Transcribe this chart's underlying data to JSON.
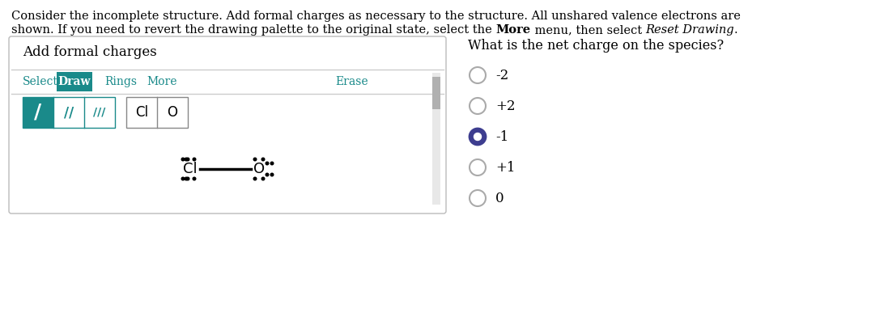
{
  "title_line1": "Consider the incomplete structure. Add formal charges as necessary to the structure. All unshared valence electrons are",
  "title_line2_plain": "shown. If you need to revert the drawing palette to the original state, select the ",
  "title_line2_bold": "More",
  "title_line2_mid": " menu, then select ",
  "title_line2_italic": "Reset Drawing",
  "title_line2_end": ".",
  "panel_left_title": "Add formal charges",
  "teal_color": "#1a8a8a",
  "toolbar_items": [
    "Select",
    "Draw",
    "Rings",
    "More",
    "Erase"
  ],
  "toolbar_active": "Draw",
  "panel_right_title": "What is the net charge on the species?",
  "radio_options": [
    "-2",
    "+2",
    "-1",
    "+1",
    "0"
  ],
  "selected_option": "-1",
  "selected_fill_color": "#3d3d8f",
  "unselected_color": "#aaaaaa",
  "background_color": "#ffffff",
  "fig_width": 10.92,
  "fig_height": 4.13,
  "fig_dpi": 100
}
